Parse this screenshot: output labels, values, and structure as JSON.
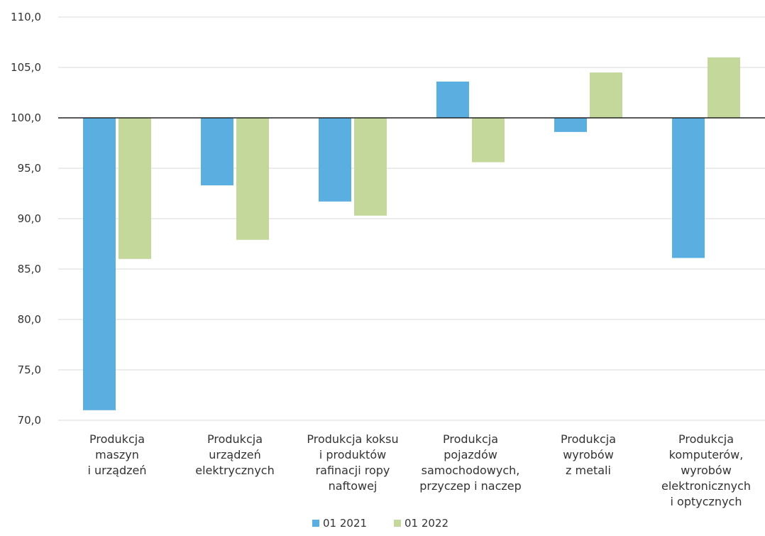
{
  "chart_data": {
    "type": "bar",
    "categories": [
      [
        "Produkcja",
        "maszyn",
        "i urządzeń"
      ],
      [
        "Produkcja",
        "urządzeń",
        "elektrycznych"
      ],
      [
        "Produkcja koksu",
        "i produktów",
        "rafinacji ropy",
        "naftowej"
      ],
      [
        "Produkcja",
        "pojazdów",
        "samochodowych,",
        "przyczep i naczep"
      ],
      [
        "Produkcja",
        "wyrobów",
        "z metali"
      ],
      [
        "Produkcja",
        "komputerów,",
        "wyrobów",
        "elektronicznych",
        "i optycznych"
      ]
    ],
    "series": [
      {
        "name": "01 2021",
        "color": "#5aaee0",
        "values": [
          71.0,
          93.3,
          91.7,
          103.6,
          98.6,
          86.1
        ]
      },
      {
        "name": "01 2022",
        "color": "#c4d89c",
        "values": [
          86.0,
          87.9,
          90.3,
          95.6,
          104.5,
          106.0
        ]
      }
    ],
    "baseline": 100.0,
    "ylim": [
      70,
      110
    ],
    "yticks": [
      "70,0",
      "75,0",
      "80,0",
      "85,0",
      "90,0",
      "95,0",
      "100,0",
      "105,0",
      "110,0"
    ],
    "grid": true,
    "legend_position": "bottom-center"
  }
}
